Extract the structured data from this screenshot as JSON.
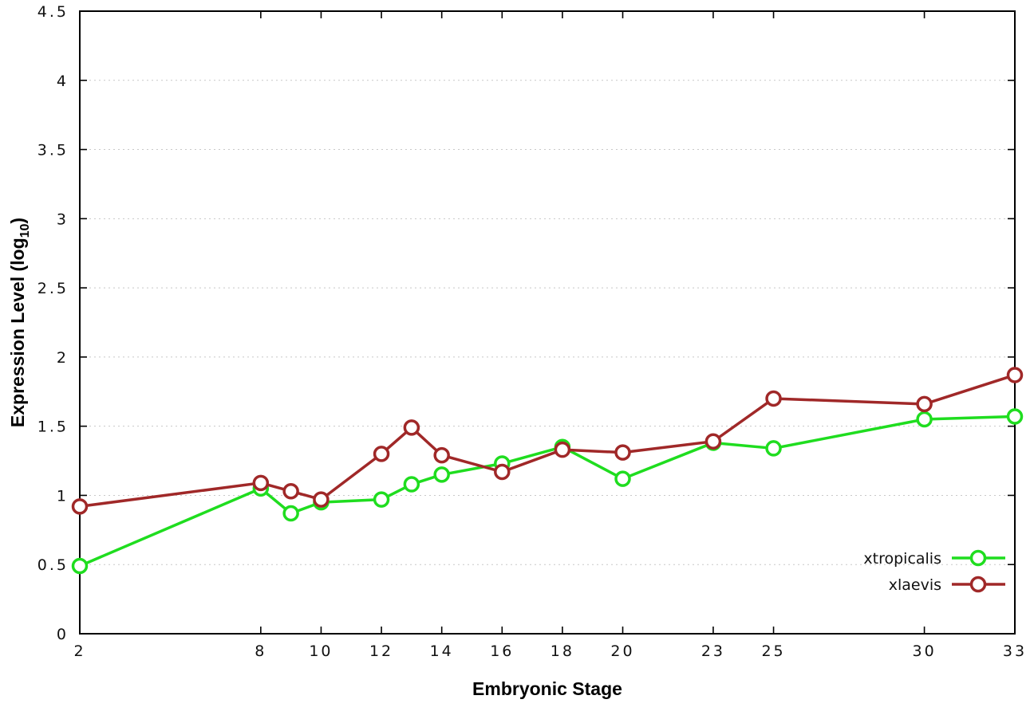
{
  "chart_data": {
    "type": "line",
    "title": "",
    "xlabel": "Embryonic Stage",
    "ylabel": "Expression Level (log10)",
    "ylabel_parts": {
      "main": "Expression Level (log",
      "sub": "10",
      "end": ")"
    },
    "xlim": [
      2,
      33
    ],
    "ylim": [
      0,
      4.5
    ],
    "xticks": [
      2,
      8,
      10,
      12,
      14,
      16,
      18,
      20,
      23,
      25,
      30,
      33
    ],
    "yticks": [
      0,
      0.5,
      1,
      1.5,
      2,
      2.5,
      3,
      3.5,
      4,
      4.5
    ],
    "grid": "horizontal",
    "legend_position": "inside-bottom-right",
    "series": [
      {
        "name": "xtropicalis",
        "color": "#1fdd1f",
        "marker": "open-circle",
        "x": [
          2,
          8,
          9,
          10,
          12,
          13,
          14,
          16,
          18,
          20,
          23,
          25,
          30,
          33
        ],
        "y": [
          0.49,
          1.05,
          0.87,
          0.95,
          0.97,
          1.08,
          1.15,
          1.23,
          1.35,
          1.12,
          1.38,
          1.34,
          1.55,
          1.57
        ]
      },
      {
        "name": "xlaevis",
        "color": "#a02828",
        "marker": "open-circle",
        "x": [
          2,
          8,
          9,
          10,
          12,
          13,
          14,
          16,
          18,
          20,
          23,
          25,
          30,
          33
        ],
        "y": [
          0.92,
          1.09,
          1.03,
          0.97,
          1.3,
          1.49,
          1.29,
          1.17,
          1.33,
          1.31,
          1.39,
          1.7,
          1.66,
          1.87
        ]
      }
    ],
    "colors": {
      "border": "#000000",
      "grid": "#c8c8c8",
      "background": "#ffffff"
    }
  }
}
